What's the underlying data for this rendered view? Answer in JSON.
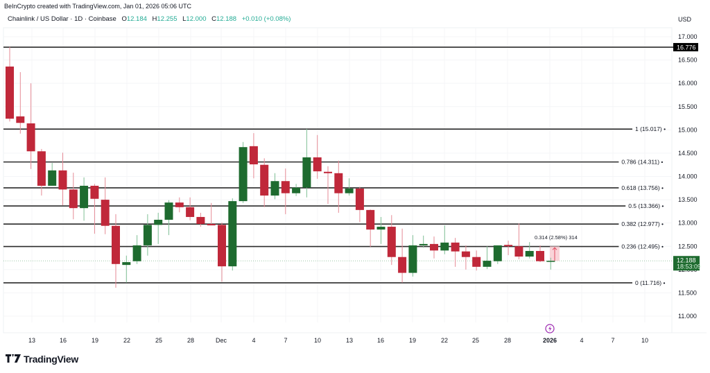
{
  "header": {
    "credit": "BeInCrypto created with TradingView.com, Jan 01, 2026 05:06 UTC",
    "symbol": "Chainlink / US Dollar · 1D · Coinbase",
    "ohlc": {
      "o_label": "O",
      "o": "12.184",
      "h_label": "H",
      "h": "12.255",
      "l_label": "L",
      "l": "12.000",
      "c_label": "C",
      "c": "12.188",
      "change": "+0.010 (+0.08%)"
    },
    "currency": "USD"
  },
  "price_axis": {
    "ticks": [
      "17.000",
      "16.500",
      "16.000",
      "15.500",
      "15.000",
      "14.500",
      "14.000",
      "13.500",
      "13.000",
      "12.500",
      "12.000",
      "11.500",
      "11.000"
    ],
    "high_marker": "16.776",
    "current_price": "12.188",
    "countdown": "18:53:09"
  },
  "time_axis": {
    "ticks": [
      "13",
      "16",
      "19",
      "22",
      "25",
      "28",
      "Dec",
      "4",
      "7",
      "10",
      "13",
      "16",
      "19",
      "22",
      "25",
      "28",
      "2026",
      "4",
      "7",
      "10"
    ]
  },
  "fib_levels": [
    {
      "ratio": "1",
      "price": "15.017",
      "label": "1 (15.017)"
    },
    {
      "ratio": "0.786",
      "price": "14.311",
      "label": "0.786 (14.311)"
    },
    {
      "ratio": "0.618",
      "price": "13.756",
      "label": "0.618 (13.756)"
    },
    {
      "ratio": "0.5",
      "price": "13.366",
      "label": "0.5 (13.366)"
    },
    {
      "ratio": "0.382",
      "price": "12.977",
      "label": "0.382 (12.977)"
    },
    {
      "ratio": "0.236",
      "price": "12.495",
      "label": "0.236 (12.495)"
    },
    {
      "ratio": "0",
      "price": "11.716",
      "label": "0 (11.716)"
    }
  ],
  "measure_label": "0.314 (2.58%) 314",
  "branding": {
    "logo_text": "TradingView",
    "logo_mark": "17"
  },
  "colors": {
    "up": "#1e6b2f",
    "down": "#c0283a",
    "up_wick": "#7fbf95",
    "down_wick": "#e58a95",
    "fib_line": "#2a2a2a",
    "current_label": "#1e6b2f",
    "marker_bg": "#000000",
    "event_icon": "#9c27b0"
  },
  "chart_data": {
    "type": "candlestick",
    "title": "Chainlink / US Dollar · 1D · Coinbase",
    "xlabel": "",
    "ylabel": "USD",
    "ylim": [
      10.7,
      17.2
    ],
    "grid": true,
    "dates": [
      "2025-11-11",
      "2025-11-12",
      "2025-11-13",
      "2025-11-14",
      "2025-11-15",
      "2025-11-16",
      "2025-11-17",
      "2025-11-18",
      "2025-11-19",
      "2025-11-20",
      "2025-11-21",
      "2025-11-22",
      "2025-11-23",
      "2025-11-24",
      "2025-11-25",
      "2025-11-26",
      "2025-11-27",
      "2025-11-28",
      "2025-11-29",
      "2025-11-30",
      "2025-12-01",
      "2025-12-02",
      "2025-12-03",
      "2025-12-04",
      "2025-12-05",
      "2025-12-06",
      "2025-12-07",
      "2025-12-08",
      "2025-12-09",
      "2025-12-10",
      "2025-12-11",
      "2025-12-12",
      "2025-12-13",
      "2025-12-14",
      "2025-12-15",
      "2025-12-16",
      "2025-12-17",
      "2025-12-18",
      "2025-12-19",
      "2025-12-20",
      "2025-12-21",
      "2025-12-22",
      "2025-12-23",
      "2025-12-24",
      "2025-12-25",
      "2025-12-26",
      "2025-12-27",
      "2025-12-28",
      "2025-12-29",
      "2025-12-30",
      "2025-12-31",
      "2026-01-01"
    ],
    "open": [
      16.36,
      15.29,
      15.14,
      14.54,
      13.8,
      14.13,
      13.72,
      13.32,
      13.8,
      13.5,
      12.94,
      12.1,
      12.18,
      12.52,
      12.96,
      13.07,
      13.44,
      13.34,
      13.13,
      12.98,
      12.96,
      12.07,
      13.47,
      14.65,
      14.25,
      13.59,
      13.9,
      13.64,
      13.76,
      14.41,
      14.1,
      14.07,
      13.64,
      13.74,
      13.28,
      12.86,
      12.92,
      12.27,
      11.93,
      12.52,
      12.55,
      12.41,
      12.58,
      12.39,
      12.27,
      12.06,
      12.18,
      12.53,
      12.5,
      12.28,
      12.4,
      12.184
    ],
    "high": [
      16.78,
      16.24,
      16.0,
      14.59,
      14.29,
      14.51,
      14.08,
      13.98,
      13.84,
      13.98,
      13.19,
      12.3,
      12.74,
      13.19,
      13.22,
      13.49,
      13.55,
      13.55,
      13.22,
      13.43,
      13.01,
      13.53,
      14.74,
      14.93,
      14.39,
      14.07,
      14.17,
      13.84,
      15.02,
      14.89,
      14.22,
      14.34,
      13.96,
      13.78,
      13.29,
      13.13,
      13.17,
      12.88,
      12.74,
      12.73,
      12.71,
      12.95,
      12.68,
      12.52,
      12.41,
      12.5,
      12.52,
      12.62,
      12.99,
      12.59,
      12.52,
      12.255
    ],
    "low": [
      15.18,
      14.92,
      14.16,
      13.59,
      13.8,
      13.38,
      13.08,
      13.05,
      12.77,
      12.76,
      11.61,
      11.72,
      12.12,
      12.3,
      12.55,
      12.74,
      13.23,
      13.06,
      12.92,
      12.95,
      11.74,
      11.98,
      13.43,
      13.96,
      13.34,
      13.51,
      13.19,
      13.58,
      13.55,
      13.95,
      13.41,
      13.22,
      13.59,
      13.02,
      12.49,
      12.55,
      12.1,
      11.72,
      11.85,
      12.47,
      12.24,
      12.33,
      12.06,
      12.0,
      11.98,
      12.01,
      12.12,
      12.31,
      12.22,
      12.24,
      12.16,
      12.0
    ],
    "close": [
      15.24,
      15.15,
      14.54,
      13.8,
      14.13,
      13.72,
      13.32,
      13.8,
      13.52,
      12.94,
      12.12,
      12.16,
      12.52,
      12.96,
      13.07,
      13.44,
      13.34,
      13.13,
      12.98,
      12.95,
      12.07,
      13.47,
      14.63,
      14.26,
      13.59,
      13.9,
      13.64,
      13.76,
      14.41,
      14.11,
      14.07,
      13.64,
      13.74,
      13.28,
      12.86,
      12.92,
      12.27,
      11.93,
      12.52,
      12.55,
      12.41,
      12.58,
      12.39,
      12.27,
      12.06,
      12.19,
      12.52,
      12.5,
      12.28,
      12.4,
      12.18,
      12.188
    ],
    "horizontal_lines": [
      16.776,
      15.017,
      14.311,
      13.756,
      13.366,
      12.977,
      12.495,
      11.716
    ],
    "annotations": [
      "Fib retracement 0 (11.716) to 1 (15.017)",
      "Measure: 0.314 (2.58%) 314",
      "High marker 16.776"
    ]
  }
}
